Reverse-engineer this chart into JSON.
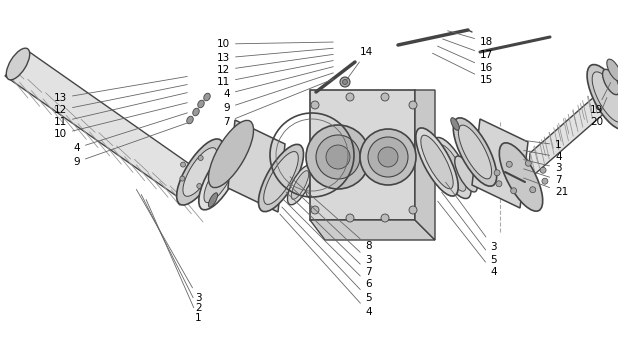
{
  "bg": "#ffffff",
  "lc": "#444444",
  "lc2": "#666666",
  "tc": "#000000",
  "fig_w": 6.18,
  "fig_h": 3.4,
  "dpi": 100
}
